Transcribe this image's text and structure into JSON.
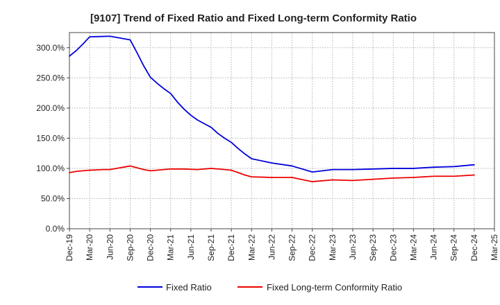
{
  "chart_data": {
    "type": "line",
    "title": "[9107]  Trend of Fixed Ratio and Fixed Long-term Conformity Ratio",
    "xlabel": "",
    "ylabel": "",
    "ylim": [
      0,
      325
    ],
    "y_ticks": [
      {
        "value": 0,
        "label": "0.0%"
      },
      {
        "value": 50,
        "label": "50.0%"
      },
      {
        "value": 100,
        "label": "100.0%"
      },
      {
        "value": 150,
        "label": "150.0%"
      },
      {
        "value": 200,
        "label": "200.0%"
      },
      {
        "value": 250,
        "label": "250.0%"
      },
      {
        "value": 300,
        "label": "300.0%"
      }
    ],
    "x_ticks": [
      "Dec-19",
      "Mar-20",
      "Jun-20",
      "Sep-20",
      "Dec-20",
      "Mar-21",
      "Jun-21",
      "Sep-21",
      "Dec-21",
      "Mar-22",
      "Jun-22",
      "Sep-22",
      "Dec-22",
      "Mar-23",
      "Jun-23",
      "Sep-23",
      "Dec-23",
      "Mar-24",
      "Jun-24",
      "Sep-24",
      "Dec-24",
      "Mar-25"
    ],
    "x": [
      "2019-12",
      "2020-01",
      "2020-02",
      "2020-03",
      "2020-04",
      "2020-05",
      "2020-06",
      "2020-07",
      "2020-08",
      "2020-09",
      "2020-10",
      "2020-11",
      "2020-12",
      "2021-01",
      "2021-02",
      "2021-03",
      "2021-04",
      "2021-05",
      "2021-06",
      "2021-07",
      "2021-08",
      "2021-09",
      "2021-10",
      "2021-11",
      "2021-12",
      "2022-01",
      "2022-02",
      "2022-03",
      "2022-06",
      "2022-09",
      "2022-12",
      "2023-03",
      "2023-06",
      "2023-09",
      "2023-12",
      "2024-03",
      "2024-06",
      "2024-09",
      "2024-12"
    ],
    "series": [
      {
        "name": "Fixed Ratio",
        "color": "#0000dd",
        "values": [
          286,
          295,
          306,
          318,
          318.3,
          318.6,
          319,
          317,
          315,
          313,
          292,
          270,
          251,
          241,
          232,
          224,
          210,
          198,
          188,
          180,
          174,
          168,
          158,
          150,
          143,
          133,
          124,
          116,
          109,
          104,
          94,
          98,
          98,
          99,
          100,
          100,
          102,
          103,
          106
        ]
      },
      {
        "name": "Fixed Long-term Conformity Ratio",
        "color": "#ee0000",
        "values": [
          93,
          95,
          96,
          97,
          97.5,
          98,
          98,
          100,
          102,
          104,
          101,
          98,
          96,
          97,
          98,
          99,
          99,
          99,
          98.5,
          98,
          99,
          100,
          99,
          98,
          97,
          93,
          89,
          86,
          85,
          85,
          78,
          81,
          80,
          82,
          84,
          85,
          87,
          87,
          89
        ]
      }
    ],
    "legend_position": "bottom",
    "grid": true
  }
}
